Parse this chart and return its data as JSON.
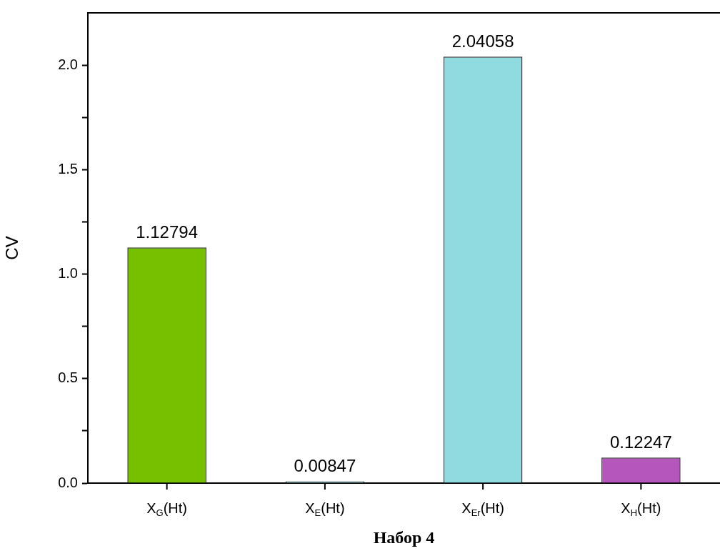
{
  "chart_data": {
    "type": "bar",
    "xlabel": "Набор 4",
    "ylabel": "CV",
    "categories": [
      "X$_{G}$(Ht)",
      "X$_{E}$(Ht)",
      "X$_{Er}$(Ht)",
      "X$_{H}$(Ht)"
    ],
    "values": [
      1.12794,
      0.00847,
      2.04058,
      0.12247
    ],
    "colors": [
      "#76c000",
      "#8fdbe0",
      "#8fdbe0",
      "#b556bd"
    ],
    "ylim": [
      0,
      2.25
    ],
    "yticks": [
      {
        "value": 0,
        "label": "0.0"
      },
      {
        "value": 0.25,
        "label": null
      },
      {
        "value": 0.5,
        "label": "0.5"
      },
      {
        "value": 0.75,
        "label": null
      },
      {
        "value": 1,
        "label": "1.0"
      },
      {
        "value": 1.25,
        "label": null
      },
      {
        "value": 1.5,
        "label": "1.5"
      },
      {
        "value": 1.75,
        "label": null
      },
      {
        "value": 2,
        "label": "2.0"
      }
    ],
    "data_labels": true,
    "grid": false,
    "legend": false
  }
}
